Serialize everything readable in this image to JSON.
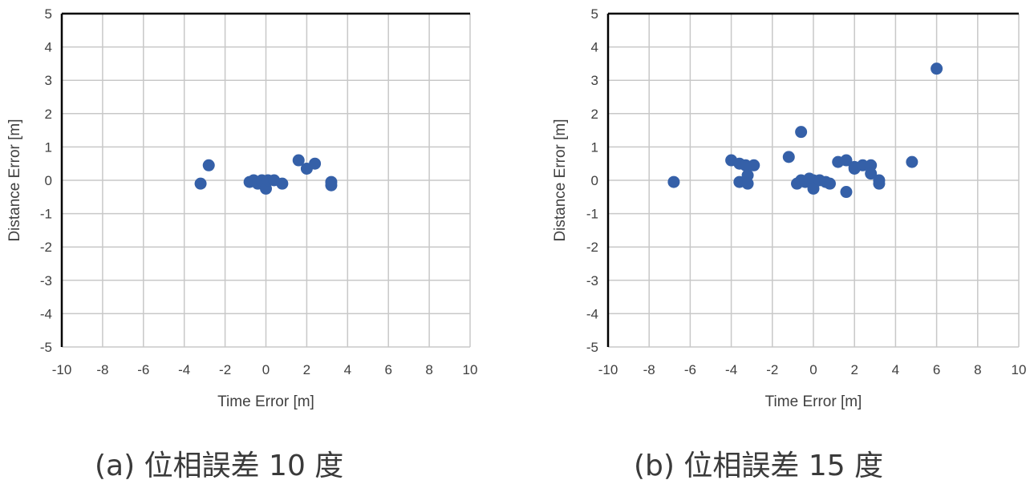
{
  "chart_data": [
    {
      "type": "scatter",
      "caption": "(a) 位相誤差 10 度",
      "xlabel": "Time Error [m]",
      "ylabel": "Distance Error [m]",
      "xlim": [
        -10,
        10
      ],
      "ylim": [
        -5,
        5
      ],
      "xticks": [
        -10,
        -8,
        -6,
        -4,
        -2,
        0,
        2,
        4,
        6,
        8,
        10
      ],
      "yticks": [
        5,
        4,
        3,
        2,
        1,
        0,
        -1,
        -2,
        -3,
        -4,
        -5
      ],
      "grid": true,
      "marker_color": "#3560a8",
      "series": [
        {
          "x": [
            -3.2,
            -2.8,
            -0.8,
            -0.6,
            -0.4,
            -0.2,
            0.0,
            0.1,
            0.4,
            0.8,
            1.6,
            2.0,
            2.4,
            3.2,
            3.2
          ],
          "y": [
            -0.1,
            0.45,
            -0.05,
            0.0,
            -0.1,
            0.0,
            -0.25,
            0.0,
            0.0,
            -0.1,
            0.6,
            0.35,
            0.5,
            -0.15,
            -0.05
          ]
        }
      ]
    },
    {
      "type": "scatter",
      "caption": "(b) 位相誤差 15 度",
      "xlabel": "Time Error [m]",
      "ylabel": "Distance Error [m]",
      "xlim": [
        -10,
        10
      ],
      "ylim": [
        -5,
        5
      ],
      "xticks": [
        -10,
        -8,
        -6,
        -4,
        -2,
        0,
        2,
        4,
        6,
        8,
        10
      ],
      "yticks": [
        5,
        4,
        3,
        2,
        1,
        0,
        -1,
        -2,
        -3,
        -4,
        -5
      ],
      "grid": true,
      "marker_color": "#3560a8",
      "series": [
        {
          "x": [
            -6.8,
            -4.0,
            -3.6,
            -3.6,
            -3.3,
            -3.2,
            -3.2,
            -2.9,
            -1.2,
            -0.6,
            -0.8,
            -0.6,
            -0.4,
            -0.2,
            0.0,
            0.0,
            0.3,
            0.6,
            0.8,
            1.2,
            1.6,
            1.6,
            2.0,
            2.0,
            2.4,
            2.8,
            2.8,
            3.2,
            3.2,
            4.8,
            6.0
          ],
          "y": [
            -0.05,
            0.6,
            0.5,
            -0.05,
            0.45,
            0.15,
            -0.1,
            0.45,
            0.7,
            1.45,
            -0.1,
            0.0,
            -0.05,
            0.05,
            0.0,
            -0.25,
            0.0,
            -0.05,
            -0.1,
            0.55,
            0.6,
            -0.35,
            0.4,
            0.35,
            0.45,
            0.45,
            0.2,
            -0.1,
            0.0,
            0.55,
            3.35
          ]
        }
      ]
    }
  ]
}
